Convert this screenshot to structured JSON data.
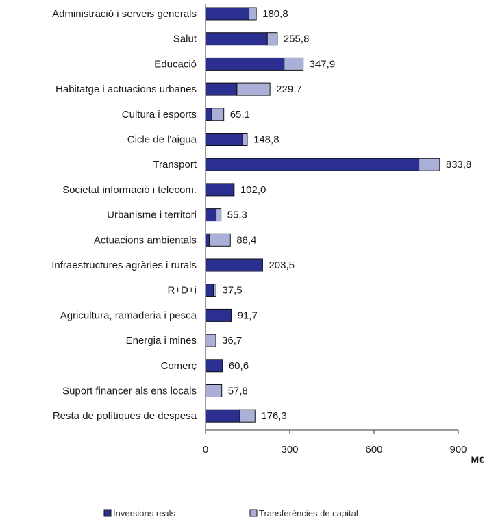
{
  "chart_data": {
    "type": "bar",
    "orientation": "horizontal",
    "stacked": true,
    "categories": [
      "Administració i serveis generals",
      "Salut",
      "Educació",
      "Habitatge i actuacions urbanes",
      "Cultura i esports",
      "Cicle de l'aigua",
      "Transport",
      "Societat informació i telecom.",
      "Urbanisme i territori",
      "Actuacions ambientals",
      "Infraestructures agràries i rurals",
      "R+D+i",
      "Agricultura, ramaderia i pesca",
      "Energia i mines",
      "Comerç",
      "Suport financer als ens locals",
      "Resta de polítiques de despesa"
    ],
    "series": [
      {
        "name": "Inversions reals",
        "color": "#2b2f8f",
        "values": [
          155,
          220,
          280,
          112,
          22,
          132,
          760,
          100,
          38,
          14,
          202,
          28,
          91.7,
          0,
          60.6,
          0,
          122
        ]
      },
      {
        "name": "Transferències de capital",
        "color": "#aab0d8",
        "values": [
          25.8,
          35.8,
          67.9,
          117.7,
          43.1,
          16.8,
          73.8,
          2,
          17.3,
          74.4,
          1.5,
          9.5,
          0,
          36.7,
          0,
          57.8,
          54.3
        ]
      }
    ],
    "totals": [
      "180,8",
      "255,8",
      "347,9",
      "229,7",
      "65,1",
      "148,8",
      "833,8",
      "102,0",
      "55,3",
      "88,4",
      "203,5",
      "37,5",
      "91,7",
      "36,7",
      "60,6",
      "57,8",
      "176,3"
    ],
    "xlim": [
      0,
      900
    ],
    "xticks": [
      0,
      300,
      600,
      900
    ],
    "xtick_labels": [
      "0",
      "300",
      "600",
      "900"
    ],
    "unit_label": "M€",
    "legend_position": "bottom-center",
    "grid": false
  }
}
